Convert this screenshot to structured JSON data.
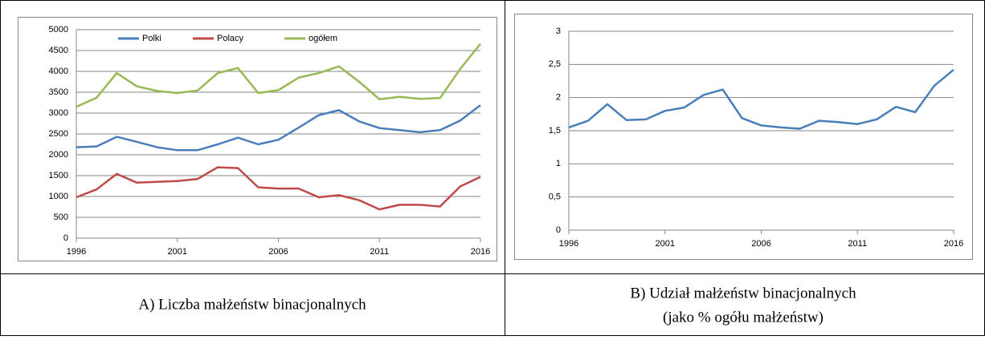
{
  "chart_data": [
    {
      "type": "line",
      "x": [
        1996,
        1997,
        1998,
        1999,
        2000,
        2001,
        2002,
        2003,
        2004,
        2005,
        2006,
        2007,
        2008,
        2009,
        2010,
        2011,
        2012,
        2013,
        2014,
        2015,
        2016
      ],
      "xlim": [
        1996,
        2016
      ],
      "xticks": [
        1996,
        2001,
        2006,
        2011,
        2016
      ],
      "ylim": [
        0,
        5000
      ],
      "yticks": [
        0,
        500,
        1000,
        1500,
        2000,
        2500,
        3000,
        3500,
        4000,
        4500,
        5000
      ],
      "grid": true,
      "legend": "top",
      "series": [
        {
          "name": "Polki",
          "color": "#4a7ebb",
          "values": [
            2180,
            2200,
            2430,
            2310,
            2180,
            2110,
            2110,
            2250,
            2410,
            2250,
            2360,
            2650,
            2950,
            3070,
            2800,
            2640,
            2590,
            2540,
            2590,
            2820,
            3190
          ]
        },
        {
          "name": "Polacy",
          "color": "#be4b48",
          "values": [
            980,
            1170,
            1540,
            1330,
            1350,
            1370,
            1420,
            1700,
            1680,
            1220,
            1190,
            1190,
            980,
            1030,
            910,
            690,
            800,
            800,
            760,
            1240,
            1470
          ]
        },
        {
          "name": "ogółem",
          "color": "#98b954",
          "values": [
            3150,
            3370,
            3960,
            3640,
            3530,
            3480,
            3540,
            3960,
            4080,
            3480,
            3550,
            3850,
            3960,
            4120,
            3750,
            3330,
            3390,
            3340,
            3360,
            4060,
            4660
          ]
        }
      ]
    },
    {
      "type": "line",
      "x": [
        1996,
        1997,
        1998,
        1999,
        2000,
        2001,
        2002,
        2003,
        2004,
        2005,
        2006,
        2007,
        2008,
        2009,
        2010,
        2011,
        2012,
        2013,
        2014,
        2015,
        2016
      ],
      "xlim": [
        1996,
        2016
      ],
      "xticks": [
        1996,
        2001,
        2006,
        2011,
        2016
      ],
      "ylim": [
        0,
        3
      ],
      "yticks": [
        0,
        {
          "value": 0.5,
          "label": "0,5"
        },
        1,
        {
          "value": 1.5,
          "label": "1,5"
        },
        2,
        {
          "value": 2.5,
          "label": "2,5"
        },
        3
      ],
      "grid": true,
      "color": "#4a7ebb",
      "values": [
        1.55,
        1.65,
        1.9,
        1.66,
        1.67,
        1.8,
        1.85,
        2.04,
        2.12,
        1.69,
        1.58,
        1.55,
        1.53,
        1.65,
        1.63,
        1.6,
        1.67,
        1.86,
        1.78,
        2.18,
        2.42
      ]
    }
  ],
  "captions": [
    [
      "A) Liczba małżeństw binacjonalnych"
    ],
    [
      "B) Udział małżeństw binacjonalnych",
      "(jako % ogółu małżeństw)"
    ]
  ]
}
